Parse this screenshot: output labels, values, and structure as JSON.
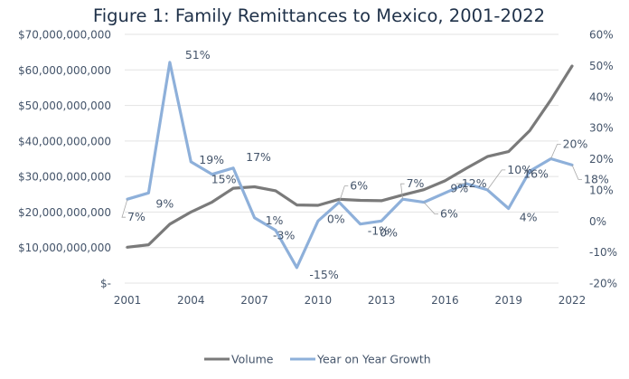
{
  "chart_data": {
    "type": "line",
    "title": "Figure 1: Family Remittances to Mexico, 2001-2022",
    "xlabel": "",
    "ylabel": "",
    "y2label": "",
    "x": [
      2001,
      2002,
      2003,
      2004,
      2005,
      2006,
      2007,
      2008,
      2009,
      2010,
      2011,
      2012,
      2013,
      2014,
      2015,
      2016,
      2017,
      2018,
      2019,
      2020,
      2021,
      2022
    ],
    "x_tick_labels": [
      "2001",
      "2004",
      "2007",
      "2010",
      "2013",
      "2016",
      "2019",
      "2022"
    ],
    "ylim": [
      0,
      70000000000
    ],
    "y_tick_labels": [
      "$-",
      "$10,000,000,000",
      "$20,000,000,000",
      "$30,000,000,000",
      "$40,000,000,000",
      "$50,000,000,000",
      "$60,000,000,000",
      "$70,000,000,000"
    ],
    "y2lim": [
      -20,
      60
    ],
    "y2_tick_labels": [
      "-20%",
      "-10%",
      "0%",
      "10%",
      "20%",
      "30%",
      "40%",
      "50%",
      "60%"
    ],
    "grid": true,
    "legend_position": "bottom",
    "series": [
      {
        "name": "Volume",
        "axis": "left",
        "color": "#7a7a7a",
        "values": [
          10100000000,
          10800000000,
          16600000000,
          20000000000,
          22800000000,
          26700000000,
          27100000000,
          26000000000,
          22000000000,
          21900000000,
          23600000000,
          23300000000,
          23200000000,
          24800000000,
          26300000000,
          28800000000,
          32300000000,
          35600000000,
          37000000000,
          42900000000,
          51600000000,
          61100000000
        ]
      },
      {
        "name": "Year on Year Growth",
        "axis": "right",
        "color": "#8eb0da",
        "values": [
          7,
          9,
          51,
          19,
          15,
          17,
          1,
          -3,
          -15,
          0,
          6,
          -1,
          0,
          7,
          6,
          9,
          12,
          10,
          4,
          16,
          20,
          18
        ],
        "data_labels": [
          "7%",
          "9%",
          "51%",
          "19%",
          "15%",
          "17%",
          "1%",
          "-3%",
          "-15%",
          "0%",
          "6%",
          "-1%",
          "0%",
          "7%",
          "6%",
          "9%",
          "12%",
          "10%",
          "4%",
          "16%",
          "20%",
          "18%"
        ]
      }
    ]
  }
}
